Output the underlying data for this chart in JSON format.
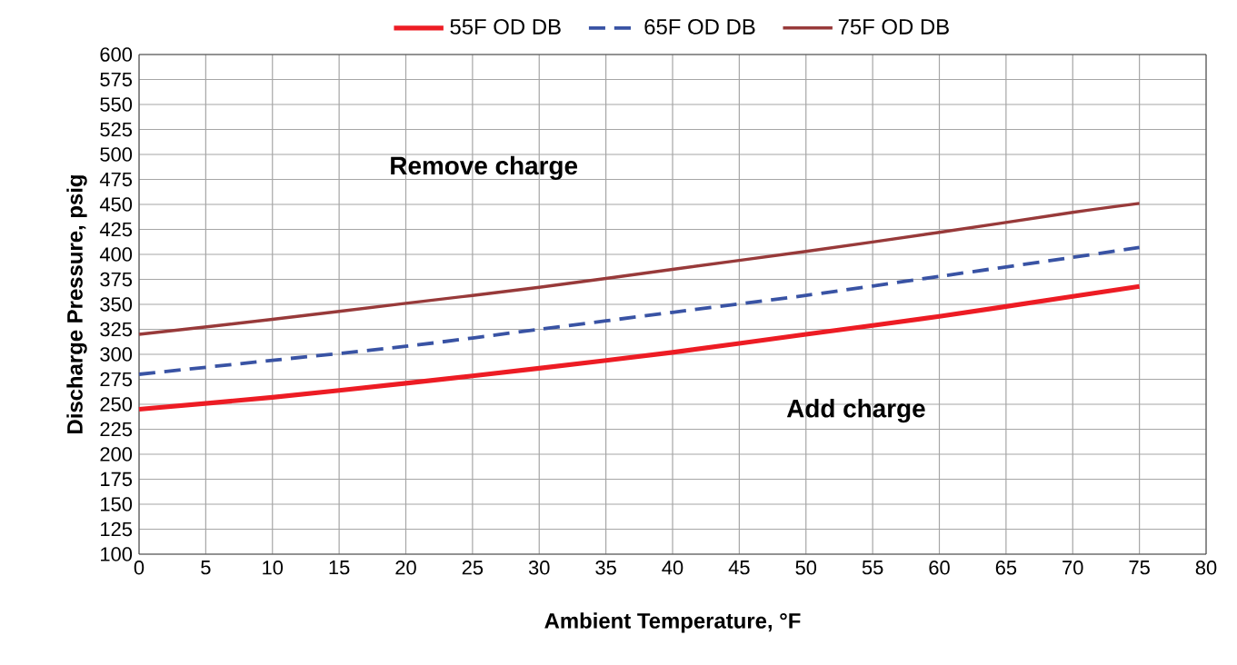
{
  "chart_data": {
    "type": "line",
    "xlabel": "Ambient Temperature, °F",
    "ylabel": "Discharge Pressure,  psig",
    "x": [
      0,
      10,
      20,
      30,
      40,
      50,
      60,
      70,
      75
    ],
    "series": [
      {
        "name": "55F OD DB",
        "color": "#ed1c24",
        "line_style": "solid",
        "values": [
          245,
          257,
          271,
          286,
          302,
          320,
          338,
          358,
          368
        ]
      },
      {
        "name": "65F OD DB",
        "color": "#3953a4",
        "line_style": "dashed",
        "values": [
          280,
          294,
          308,
          325,
          342,
          359,
          378,
          397,
          407
        ]
      },
      {
        "name": "75F OD DB",
        "color": "#983a3a",
        "line_style": "solid",
        "values": [
          320,
          335,
          351,
          367,
          385,
          403,
          422,
          442,
          451
        ]
      }
    ],
    "xlim": [
      0,
      80
    ],
    "xticks": [
      0,
      5,
      10,
      15,
      20,
      25,
      30,
      35,
      40,
      45,
      50,
      55,
      60,
      65,
      70,
      75,
      80
    ],
    "ylim": [
      100,
      600
    ],
    "yticks": [
      100,
      125,
      150,
      175,
      200,
      225,
      250,
      275,
      300,
      325,
      350,
      375,
      400,
      425,
      450,
      475,
      500,
      525,
      550,
      575,
      600
    ],
    "grid": true,
    "legend": "top",
    "marker": "none",
    "annotations": [
      "Remove charge",
      "Add charge"
    ]
  }
}
